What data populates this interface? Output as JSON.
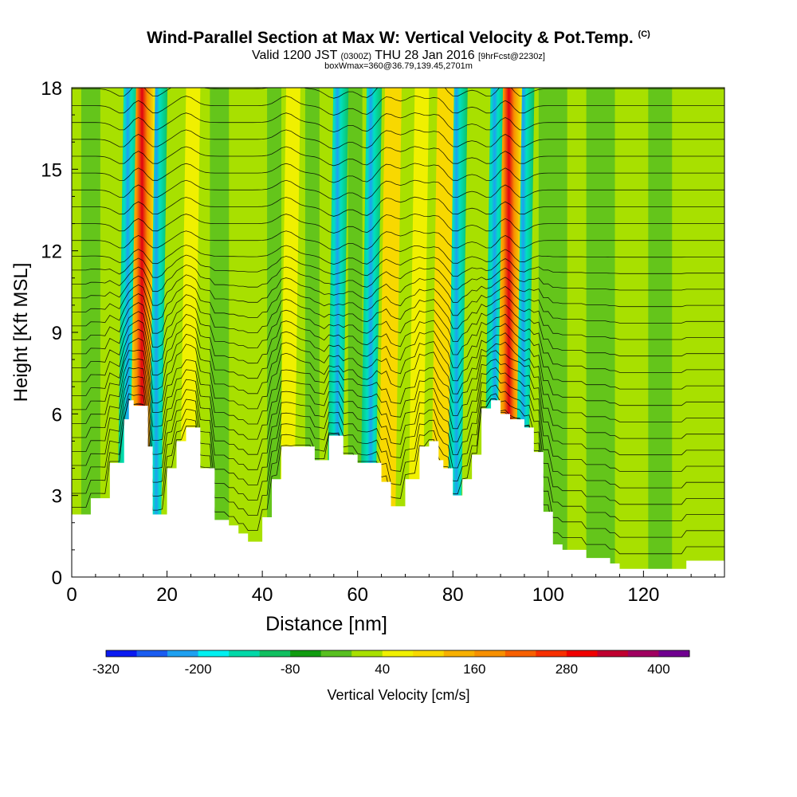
{
  "header": {
    "title": "Wind-Parallel Section at Max W: Vertical Velocity & Pot.Temp.",
    "copyright": "(C)",
    "valid_prefix": "Valid 1200 JST",
    "valid_utc": "(0300Z)",
    "valid_date": "THU 28 Jan 2016",
    "forecast": "[9hrFcst@2230z]",
    "box_info": "boxWmax=360@36.79,139.45,2701m"
  },
  "chart_data": {
    "type": "heatmap",
    "title": "Wind-Parallel Section at Max W: Vertical Velocity & Pot.Temp.",
    "xlabel": "Distance [nm]",
    "ylabel": "Height [Kft MSL]",
    "xlim": [
      0,
      137
    ],
    "ylim": [
      0,
      18
    ],
    "xticks": [
      0,
      20,
      40,
      60,
      80,
      100,
      120
    ],
    "yticks": [
      0,
      3,
      6,
      9,
      12,
      15,
      18
    ],
    "colorbar": {
      "label": "Vertical Velocity [cm/s]",
      "tick_labels": [
        -320,
        -200,
        -80,
        40,
        160,
        280,
        400
      ],
      "levels": [
        -320,
        -280,
        -240,
        -200,
        -160,
        -120,
        -80,
        -40,
        0,
        40,
        80,
        120,
        160,
        200,
        240,
        280,
        320,
        360,
        400,
        440
      ],
      "colors": [
        "#0a1af0",
        "#1a5cf0",
        "#1ea0f0",
        "#00f0f0",
        "#00d8a8",
        "#10c060",
        "#109c10",
        "#58c020",
        "#a8e000",
        "#f0f000",
        "#f8d800",
        "#f8b000",
        "#f89000",
        "#f86000",
        "#f83000",
        "#f00000",
        "#c00030",
        "#a00060",
        "#700090"
      ]
    },
    "updraft_bands": [
      {
        "x": 14,
        "peak_w": 360
      },
      {
        "x": 24,
        "peak_w": 40
      },
      {
        "x": 45,
        "peak_w": 40
      },
      {
        "x": 66,
        "peak_w": 160
      },
      {
        "x": 72,
        "peak_w": 80
      },
      {
        "x": 77,
        "peak_w": 120
      },
      {
        "x": 91,
        "peak_w": 360
      }
    ],
    "downdraft_bands": [
      {
        "x": 11,
        "peak_w": -200
      },
      {
        "x": 17,
        "peak_w": -160
      },
      {
        "x": 55,
        "peak_w": -120
      },
      {
        "x": 62,
        "peak_w": -160
      },
      {
        "x": 80,
        "peak_w": -200
      },
      {
        "x": 88,
        "peak_w": -280
      },
      {
        "x": 94,
        "peak_w": -160
      }
    ],
    "terrain_kft": [
      [
        0,
        2.3
      ],
      [
        4,
        2.9
      ],
      [
        8,
        4.2
      ],
      [
        11,
        5.8
      ],
      [
        12,
        6.5
      ],
      [
        13,
        6.3
      ],
      [
        16,
        4.8
      ],
      [
        17,
        2.3
      ],
      [
        20,
        4.0
      ],
      [
        22,
        5.0
      ],
      [
        24,
        5.5
      ],
      [
        27,
        4.0
      ],
      [
        30,
        2.1
      ],
      [
        33,
        1.9
      ],
      [
        35,
        1.6
      ],
      [
        37,
        1.3
      ],
      [
        40,
        2.2
      ],
      [
        42,
        3.6
      ],
      [
        44,
        4.8
      ],
      [
        48,
        4.8
      ],
      [
        51,
        4.3
      ],
      [
        54,
        5.2
      ],
      [
        57,
        4.5
      ],
      [
        60,
        4.2
      ],
      [
        63,
        4.2
      ],
      [
        65,
        3.5
      ],
      [
        67,
        2.6
      ],
      [
        68,
        2.6
      ],
      [
        70,
        3.6
      ],
      [
        73,
        4.8
      ],
      [
        75,
        5.0
      ],
      [
        77,
        4.3
      ],
      [
        78,
        4.0
      ],
      [
        80,
        3.0
      ],
      [
        82,
        3.6
      ],
      [
        84,
        4.5
      ],
      [
        86,
        6.2
      ],
      [
        88,
        6.5
      ],
      [
        90,
        6.0
      ],
      [
        92,
        5.8
      ],
      [
        95,
        5.5
      ],
      [
        97,
        4.6
      ],
      [
        99,
        2.4
      ],
      [
        101,
        1.2
      ],
      [
        103,
        1.0
      ],
      [
        108,
        0.7
      ],
      [
        113,
        0.5
      ],
      [
        115,
        0.3
      ],
      [
        118,
        0.3
      ],
      [
        122,
        0.3
      ],
      [
        127,
        0.3
      ],
      [
        129,
        0.6
      ],
      [
        133,
        0.6
      ],
      [
        137,
        0.6
      ]
    ]
  }
}
